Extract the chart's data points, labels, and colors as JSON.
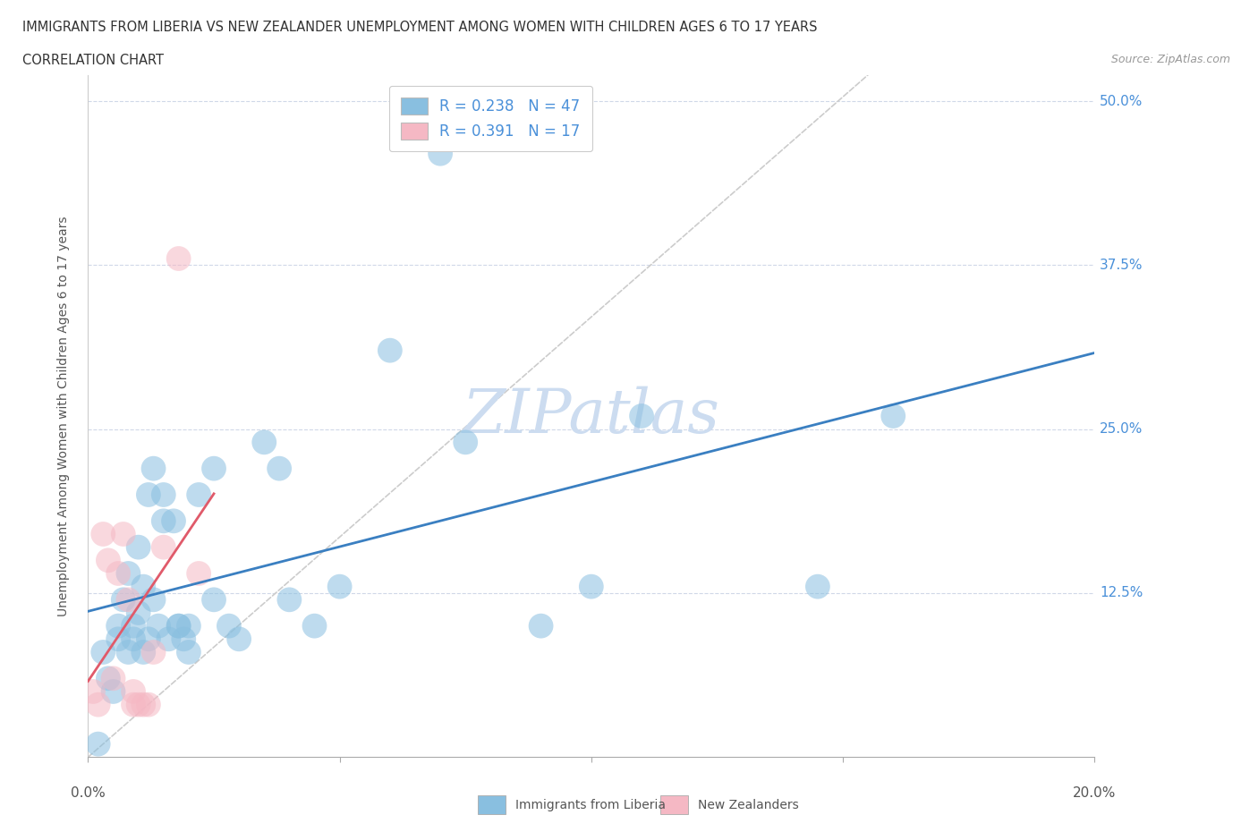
{
  "title_line1": "IMMIGRANTS FROM LIBERIA VS NEW ZEALANDER UNEMPLOYMENT AMONG WOMEN WITH CHILDREN AGES 6 TO 17 YEARS",
  "title_line2": "CORRELATION CHART",
  "source_text": "Source: ZipAtlas.com",
  "ylabel": "Unemployment Among Women with Children Ages 6 to 17 years",
  "xlim": [
    0.0,
    0.2
  ],
  "ylim": [
    0.0,
    0.52
  ],
  "yticks": [
    0.125,
    0.25,
    0.375,
    0.5
  ],
  "ytick_labels": [
    "12.5%",
    "25.0%",
    "37.5%",
    "50.0%"
  ],
  "xticks": [
    0.0,
    0.05,
    0.1,
    0.15,
    0.2
  ],
  "xtick_labels_show": [
    "0.0%",
    "",
    "",
    "",
    "20.0%"
  ],
  "grid_color": "#d0d8e8",
  "watermark": "ZIPatlas",
  "watermark_color": "#ccdcf0",
  "blue_color": "#89bfe0",
  "pink_color": "#f5b8c4",
  "trend_blue": "#3a7fc1",
  "trend_pink": "#e05a6a",
  "trend_gray": "#cccccc",
  "R_blue": 0.238,
  "N_blue": 47,
  "R_pink": 0.391,
  "N_pink": 17,
  "liberia_x": [
    0.002,
    0.003,
    0.004,
    0.005,
    0.006,
    0.006,
    0.007,
    0.008,
    0.008,
    0.009,
    0.009,
    0.01,
    0.01,
    0.011,
    0.011,
    0.012,
    0.012,
    0.013,
    0.013,
    0.014,
    0.015,
    0.015,
    0.016,
    0.017,
    0.018,
    0.018,
    0.019,
    0.02,
    0.02,
    0.022,
    0.025,
    0.025,
    0.028,
    0.03,
    0.035,
    0.038,
    0.04,
    0.045,
    0.05,
    0.06,
    0.07,
    0.075,
    0.09,
    0.1,
    0.11,
    0.145,
    0.16
  ],
  "liberia_y": [
    0.01,
    0.08,
    0.06,
    0.05,
    0.1,
    0.09,
    0.12,
    0.14,
    0.08,
    0.1,
    0.09,
    0.16,
    0.11,
    0.08,
    0.13,
    0.09,
    0.2,
    0.12,
    0.22,
    0.1,
    0.2,
    0.18,
    0.09,
    0.18,
    0.1,
    0.1,
    0.09,
    0.08,
    0.1,
    0.2,
    0.22,
    0.12,
    0.1,
    0.09,
    0.24,
    0.22,
    0.12,
    0.1,
    0.13,
    0.31,
    0.46,
    0.24,
    0.1,
    0.13,
    0.26,
    0.13,
    0.26
  ],
  "nz_x": [
    0.001,
    0.002,
    0.003,
    0.004,
    0.005,
    0.006,
    0.007,
    0.008,
    0.009,
    0.009,
    0.01,
    0.011,
    0.012,
    0.013,
    0.015,
    0.018,
    0.022
  ],
  "nz_y": [
    0.05,
    0.04,
    0.17,
    0.15,
    0.06,
    0.14,
    0.17,
    0.12,
    0.05,
    0.04,
    0.04,
    0.04,
    0.04,
    0.08,
    0.16,
    0.38,
    0.14
  ]
}
